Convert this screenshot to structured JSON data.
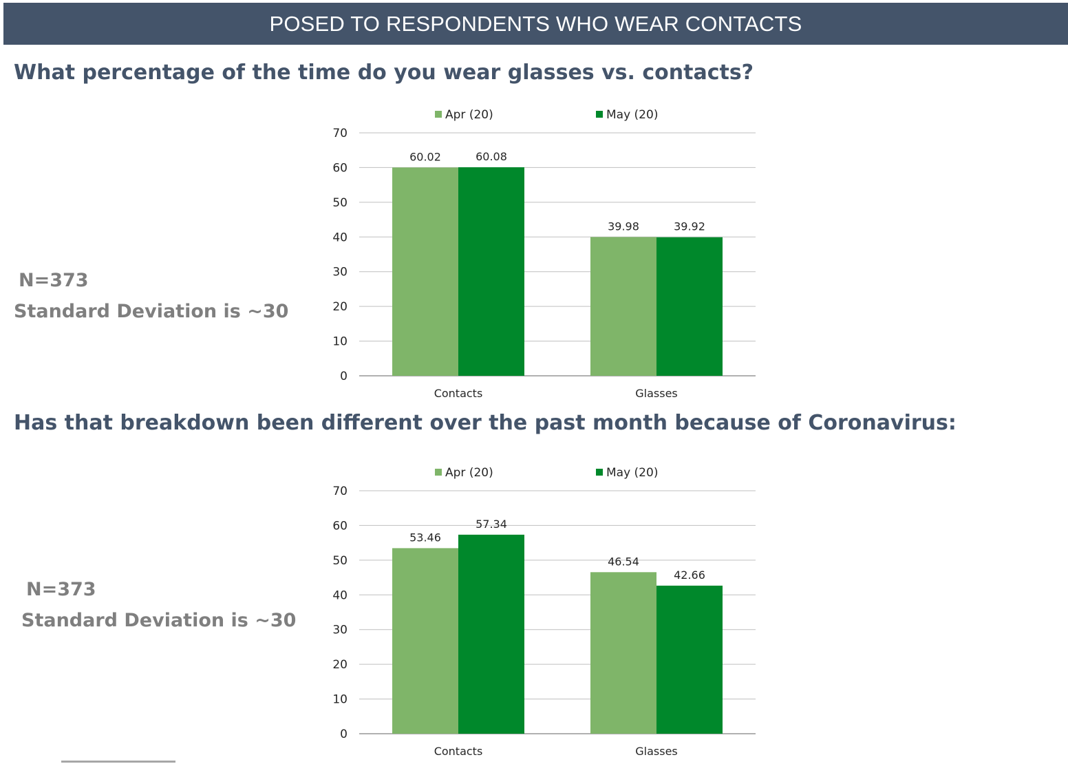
{
  "banner": {
    "title": "POSED TO RESPONDENTS WHO WEAR CONTACTS"
  },
  "colors": {
    "banner_bg": "#44546a",
    "apr": "#7fb569",
    "may": "#00882b",
    "gridline": "#bfbfbf",
    "stat_text": "#7f7f7f"
  },
  "sections": [
    {
      "question": "What percentage of the time do you wear glasses vs. contacts?",
      "stats": {
        "n": "N=373",
        "sd": "Standard Deviation is ~30"
      }
    },
    {
      "question": "Has that breakdown been different over the past month because of Coronavirus:",
      "stats": {
        "n": "N=373",
        "sd": "Standard Deviation is ~30"
      }
    }
  ],
  "chart_data": [
    {
      "type": "bar",
      "categories": [
        "Contacts",
        "Glasses"
      ],
      "series": [
        {
          "name": "Apr (20)",
          "values": [
            60.02,
            39.98
          ],
          "labels": [
            "60.02",
            "39.98"
          ]
        },
        {
          "name": "May (20)",
          "values": [
            60.08,
            39.92
          ],
          "labels": [
            "60.08",
            "39.92"
          ]
        }
      ],
      "ylim": [
        0,
        70
      ],
      "yticks": [
        "0",
        "10",
        "20",
        "30",
        "40",
        "50",
        "60",
        "70"
      ],
      "grid": true,
      "legend": "top"
    },
    {
      "type": "bar",
      "categories": [
        "Contacts",
        "Glasses"
      ],
      "series": [
        {
          "name": "Apr (20)",
          "values": [
            53.46,
            46.54
          ],
          "labels": [
            "53.46",
            "46.54"
          ]
        },
        {
          "name": "May (20)",
          "values": [
            57.34,
            42.66
          ],
          "labels": [
            "57.34",
            "42.66"
          ]
        }
      ],
      "ylim": [
        0,
        70
      ],
      "yticks": [
        "0",
        "10",
        "20",
        "30",
        "40",
        "50",
        "60",
        "70"
      ],
      "grid": true,
      "legend": "top"
    }
  ]
}
